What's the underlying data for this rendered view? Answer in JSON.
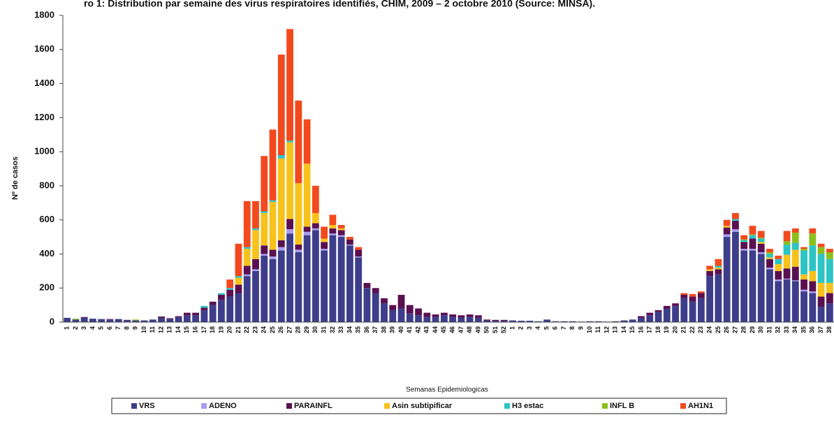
{
  "chart_data": {
    "type": "stacked-bar",
    "title": "ro 1: Distribution par semaine des virus respiratoires identifiés, CHIM, 2009 – 2 octobre 2010 (Source: MINSA).",
    "y_label": "Nº de casos",
    "x_label": "Semanas Epidemiologicas",
    "ylim": [
      0,
      1800
    ],
    "yticks": [
      0,
      200,
      400,
      600,
      800,
      1000,
      1200,
      1400,
      1600,
      1800
    ],
    "categories": [
      "1",
      "2",
      "3",
      "4",
      "5",
      "6",
      "7",
      "8",
      "9",
      "10",
      "11",
      "12",
      "13",
      "14",
      "15",
      "16",
      "17",
      "18",
      "19",
      "20",
      "21",
      "22",
      "23",
      "24",
      "25",
      "26",
      "27",
      "28",
      "29",
      "30",
      "31",
      "32",
      "33",
      "34",
      "35",
      "36",
      "37",
      "38",
      "39",
      "40",
      "41",
      "42",
      "43",
      "44",
      "45",
      "46",
      "47",
      "48",
      "49",
      "50",
      "51",
      "52",
      "1",
      "2",
      "3",
      "4",
      "5",
      "6",
      "7",
      "8",
      "9",
      "10",
      "11",
      "12",
      "13",
      "14",
      "15",
      "16",
      "17",
      "18",
      "19",
      "20",
      "21",
      "22",
      "23",
      "24",
      "25",
      "26",
      "27",
      "28",
      "29",
      "30",
      "31",
      "32",
      "33",
      "34",
      "35",
      "36",
      "37",
      "38"
    ],
    "series": [
      {
        "name": "VRS",
        "color": "#3d3d8c",
        "values": [
          25,
          15,
          25,
          20,
          18,
          15,
          18,
          10,
          10,
          10,
          15,
          25,
          20,
          30,
          40,
          40,
          70,
          100,
          130,
          150,
          170,
          270,
          300,
          390,
          370,
          420,
          520,
          410,
          510,
          540,
          420,
          510,
          500,
          450,
          380,
          200,
          170,
          110,
          70,
          80,
          50,
          40,
          30,
          30,
          40,
          30,
          25,
          30,
          25,
          10,
          8,
          8,
          10,
          8,
          8,
          5,
          15,
          5,
          5,
          5,
          3,
          5,
          5,
          3,
          5,
          10,
          15,
          25,
          40,
          60,
          80,
          95,
          140,
          120,
          140,
          270,
          280,
          500,
          530,
          420,
          420,
          400,
          310,
          240,
          250,
          240,
          180,
          170,
          90,
          110
        ]
      },
      {
        "name": "ADENO",
        "color": "#a99cf0",
        "values": [
          0,
          0,
          0,
          0,
          0,
          0,
          0,
          0,
          0,
          0,
          0,
          0,
          0,
          0,
          0,
          0,
          0,
          0,
          0,
          0,
          0,
          10,
          10,
          10,
          15,
          20,
          25,
          15,
          20,
          10,
          10,
          10,
          10,
          5,
          5,
          0,
          0,
          0,
          0,
          0,
          0,
          0,
          0,
          0,
          0,
          0,
          0,
          0,
          0,
          0,
          0,
          0,
          0,
          0,
          0,
          0,
          0,
          0,
          0,
          0,
          0,
          0,
          0,
          0,
          0,
          0,
          0,
          0,
          0,
          0,
          0,
          0,
          0,
          0,
          0,
          0,
          0,
          15,
          15,
          10,
          10,
          10,
          10,
          10,
          5,
          5,
          10,
          10,
          0,
          0
        ]
      },
      {
        "name": "PARAINFL",
        "color": "#5a1050",
        "values": [
          0,
          0,
          5,
          0,
          0,
          3,
          0,
          3,
          0,
          0,
          0,
          8,
          3,
          5,
          15,
          15,
          15,
          20,
          30,
          40,
          50,
          50,
          60,
          50,
          40,
          40,
          60,
          30,
          30,
          30,
          40,
          30,
          30,
          30,
          40,
          30,
          30,
          30,
          30,
          80,
          50,
          40,
          25,
          15,
          15,
          15,
          15,
          15,
          15,
          5,
          5,
          5,
          0,
          0,
          0,
          0,
          0,
          0,
          0,
          0,
          0,
          0,
          0,
          0,
          0,
          0,
          0,
          10,
          15,
          10,
          15,
          15,
          20,
          30,
          30,
          30,
          30,
          40,
          50,
          40,
          60,
          50,
          50,
          50,
          60,
          80,
          60,
          60,
          60,
          60
        ]
      },
      {
        "name": "Asin subtipificar",
        "color": "#f8c21c",
        "values": [
          0,
          0,
          0,
          0,
          0,
          0,
          0,
          0,
          0,
          0,
          0,
          0,
          0,
          0,
          0,
          0,
          0,
          0,
          0,
          0,
          40,
          100,
          170,
          190,
          280,
          480,
          450,
          360,
          370,
          60,
          20,
          20,
          10,
          0,
          0,
          0,
          0,
          0,
          0,
          0,
          0,
          0,
          0,
          0,
          0,
          0,
          0,
          0,
          0,
          0,
          0,
          0,
          0,
          0,
          0,
          0,
          0,
          0,
          0,
          0,
          0,
          0,
          0,
          0,
          0,
          0,
          0,
          0,
          0,
          0,
          0,
          0,
          0,
          0,
          0,
          10,
          10,
          10,
          0,
          0,
          0,
          10,
          10,
          40,
          80,
          100,
          30,
          60,
          80,
          60
        ]
      },
      {
        "name": "H3 estac",
        "color": "#2cc4c4",
        "values": [
          0,
          0,
          0,
          0,
          0,
          0,
          0,
          0,
          0,
          0,
          0,
          0,
          0,
          0,
          0,
          0,
          10,
          0,
          10,
          10,
          10,
          10,
          10,
          10,
          10,
          20,
          10,
          0,
          0,
          0,
          0,
          0,
          0,
          0,
          0,
          0,
          0,
          0,
          0,
          0,
          0,
          0,
          0,
          0,
          0,
          0,
          0,
          0,
          0,
          0,
          0,
          0,
          0,
          0,
          0,
          0,
          0,
          0,
          0,
          0,
          0,
          0,
          0,
          0,
          0,
          0,
          0,
          0,
          0,
          0,
          0,
          0,
          0,
          0,
          0,
          0,
          10,
          0,
          10,
          10,
          20,
          20,
          20,
          30,
          60,
          40,
          140,
          150,
          170,
          140
        ]
      },
      {
        "name": "INFL B",
        "color": "#8cbf1c",
        "values": [
          0,
          5,
          0,
          0,
          0,
          0,
          0,
          0,
          5,
          0,
          0,
          0,
          0,
          0,
          0,
          0,
          0,
          0,
          0,
          0,
          0,
          0,
          0,
          0,
          0,
          0,
          0,
          0,
          0,
          0,
          0,
          0,
          0,
          0,
          0,
          0,
          0,
          0,
          0,
          0,
          0,
          0,
          0,
          0,
          0,
          0,
          0,
          0,
          0,
          0,
          0,
          0,
          0,
          0,
          0,
          0,
          0,
          0,
          0,
          0,
          0,
          0,
          0,
          0,
          0,
          0,
          0,
          0,
          0,
          0,
          0,
          0,
          0,
          0,
          0,
          0,
          0,
          0,
          0,
          5,
          5,
          5,
          10,
          0,
          20,
          60,
          10,
          70,
          40,
          40
        ]
      },
      {
        "name": "AH1N1",
        "color": "#f24a1e",
        "values": [
          0,
          0,
          0,
          0,
          0,
          0,
          0,
          0,
          0,
          0,
          0,
          0,
          0,
          0,
          0,
          0,
          0,
          0,
          0,
          50,
          190,
          270,
          160,
          325,
          415,
          590,
          655,
          485,
          260,
          160,
          70,
          60,
          20,
          15,
          15,
          0,
          0,
          0,
          0,
          0,
          0,
          0,
          0,
          0,
          0,
          0,
          0,
          0,
          0,
          0,
          0,
          0,
          0,
          0,
          0,
          0,
          0,
          0,
          0,
          0,
          0,
          0,
          0,
          0,
          0,
          0,
          0,
          0,
          0,
          0,
          0,
          0,
          10,
          15,
          10,
          20,
          40,
          35,
          35,
          25,
          50,
          40,
          20,
          20,
          60,
          25,
          10,
          30,
          20,
          20
        ]
      }
    ]
  }
}
